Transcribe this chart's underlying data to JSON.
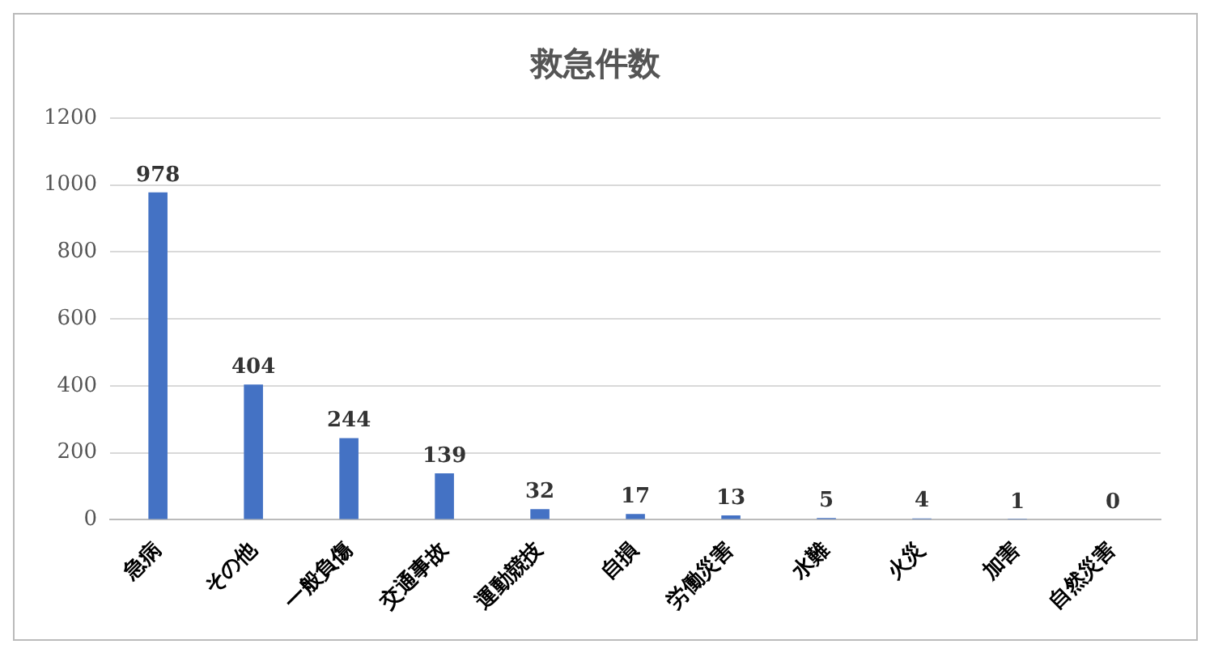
{
  "chart_data": {
    "type": "bar",
    "title": "救急件数",
    "categories": [
      "急病",
      "その他",
      "一般負傷",
      "交通事故",
      "運動競技",
      "自損",
      "労働災害",
      "水難",
      "火災",
      "加害",
      "自然災害"
    ],
    "values": [
      978,
      404,
      244,
      139,
      32,
      17,
      13,
      5,
      4,
      1,
      0
    ],
    "color": "#4472c4",
    "ylim": [
      0,
      1200
    ],
    "yticks": [
      0,
      200,
      400,
      600,
      800,
      1000,
      1200
    ],
    "grid": "y",
    "data_labels": true,
    "legend": false
  }
}
